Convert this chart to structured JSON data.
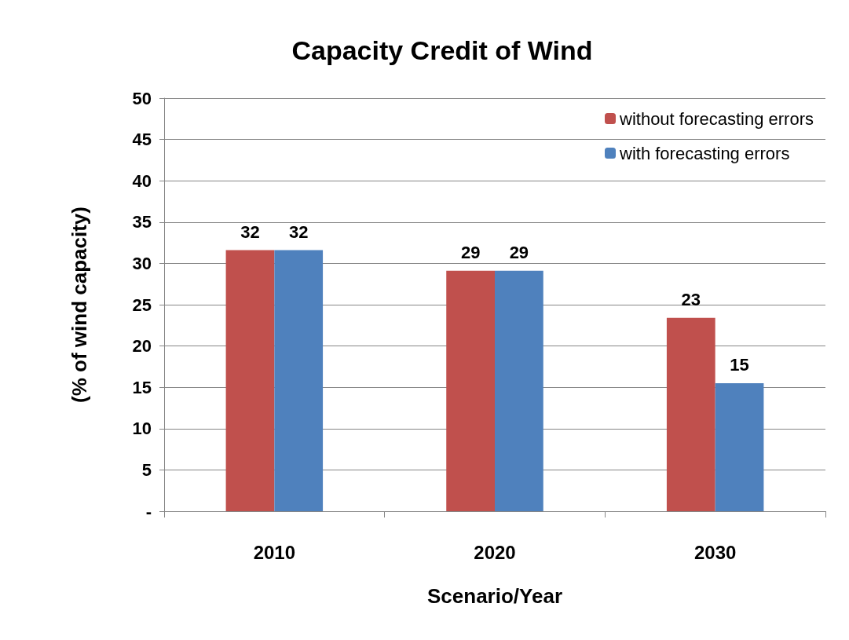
{
  "chart_data": {
    "type": "bar",
    "title": "Capacity Credit of Wind",
    "xlabel": "Scenario/Year",
    "ylabel": "(% of wind capacity)",
    "categories": [
      "2010",
      "2020",
      "2030"
    ],
    "series": [
      {
        "name": "without forecasting errors",
        "color": "#c0504d",
        "values": [
          31.6,
          29.1,
          23.4
        ],
        "value_labels": [
          "32",
          "29",
          "23"
        ]
      },
      {
        "name": "with forecasting errors",
        "color": "#4f81bd",
        "values": [
          31.6,
          29.1,
          15.5
        ],
        "value_labels": [
          "32",
          "29",
          "15"
        ]
      }
    ],
    "ylim": [
      0,
      50
    ],
    "yticks": [
      {
        "value": 0,
        "label": "-"
      },
      5,
      10,
      15,
      20,
      25,
      30,
      35,
      40,
      45,
      50
    ],
    "grid": "y",
    "legend": "top right"
  }
}
